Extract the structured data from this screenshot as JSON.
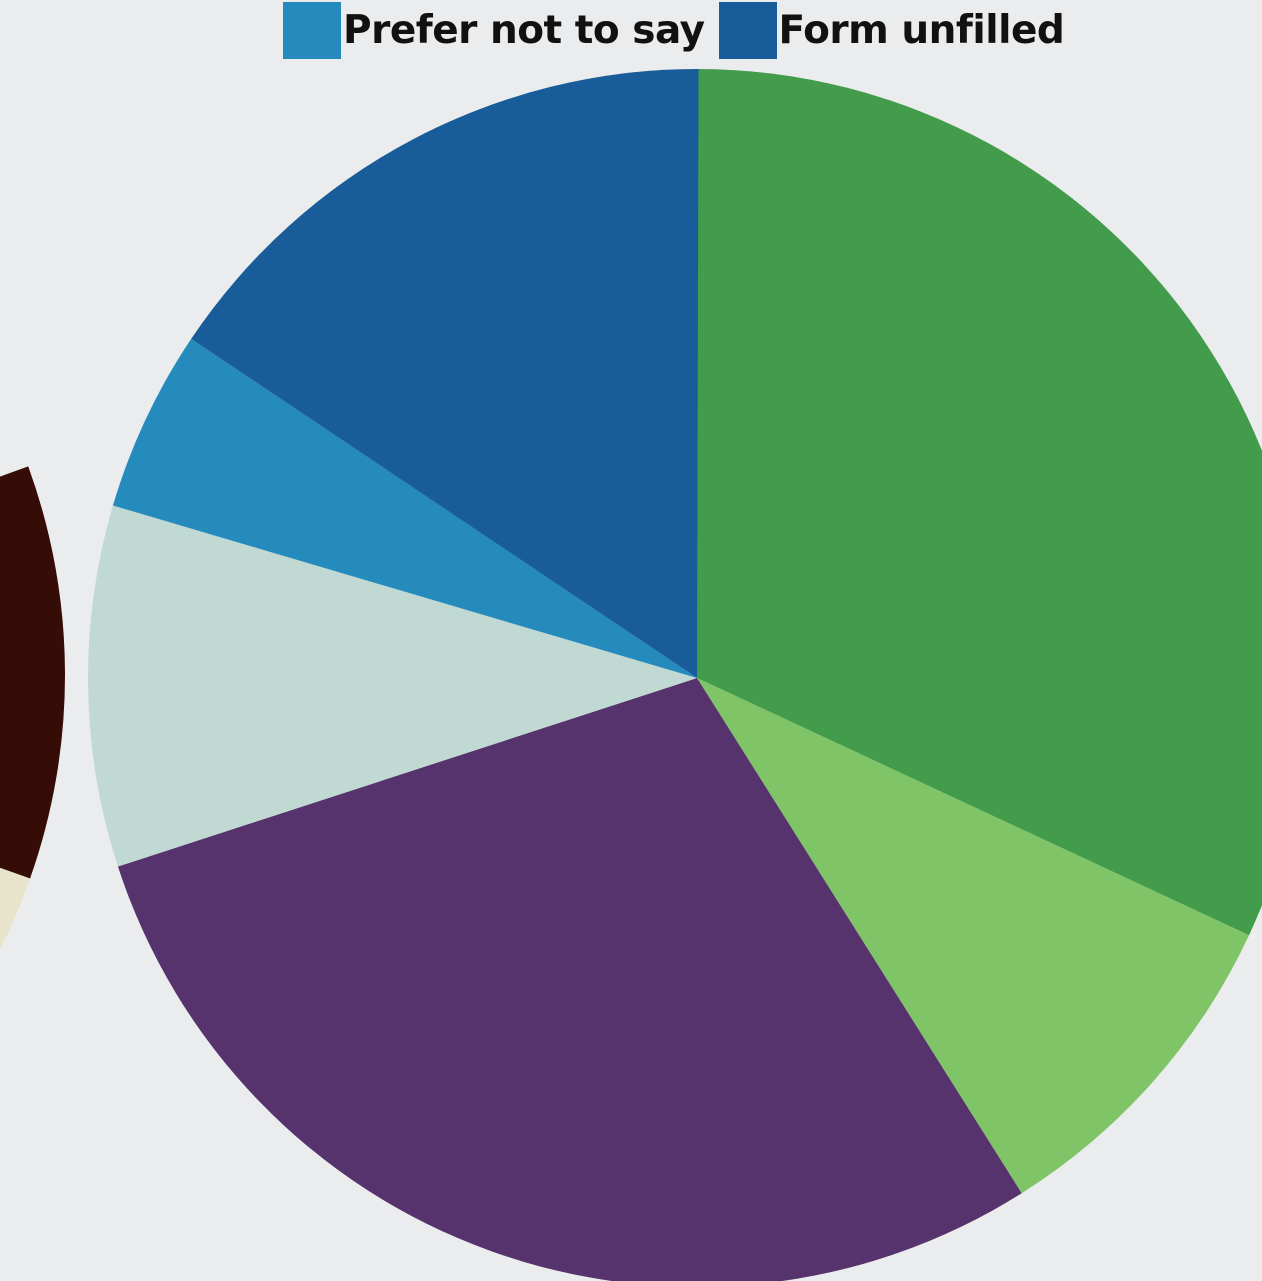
{
  "chart_data": [
    {
      "type": "pie",
      "title": "",
      "legend": {
        "placement": "top",
        "entries": [
          {
            "label": "Prefer not to say",
            "color": "#258BBD"
          },
          {
            "label": "Form unfilled",
            "color": "#195C9A"
          }
        ]
      },
      "slices": [
        {
          "color": "#439C4B",
          "value": 0.3194
        },
        {
          "color": "#80C468",
          "value": 0.0911
        },
        {
          "color": "#56336C",
          "value": 0.2894
        },
        {
          "color": "#C0DAD3",
          "value": 0.0958
        },
        {
          "color": "#258BBD",
          "value": 0.0483
        },
        {
          "color": "#195C9A",
          "value": 0.1564
        }
      ]
    },
    {
      "type": "pie",
      "title": "",
      "partially_visible": true,
      "slices": [
        {
          "color": "#350C06",
          "value": 0.1097
        },
        {
          "color": "#E7E4CB",
          "value": 0.0617
        }
      ]
    }
  ]
}
